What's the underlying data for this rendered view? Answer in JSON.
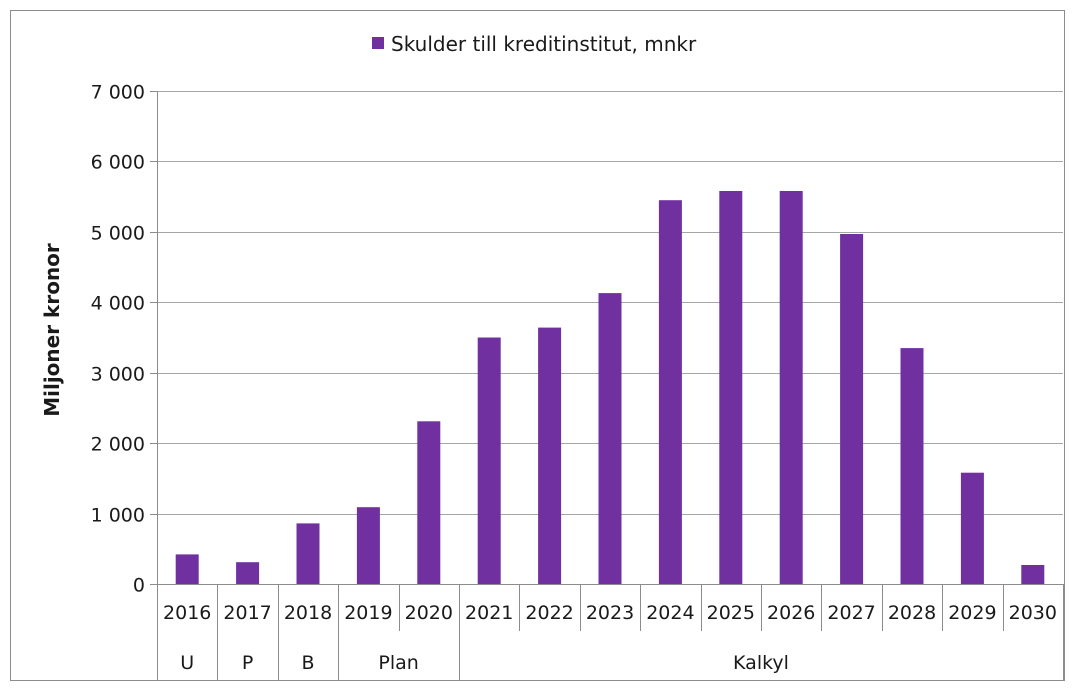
{
  "chart_data": {
    "type": "bar",
    "legend": {
      "label": "Skulder till kreditinstitut, mnkr",
      "position": "top"
    },
    "ylabel": "Miljoner kronor",
    "xlabel": "",
    "ylim": [
      0,
      7000
    ],
    "yticks": [
      {
        "value": 0,
        "label": "0"
      },
      {
        "value": 1000,
        "label": "1 000"
      },
      {
        "value": 2000,
        "label": "2 000"
      },
      {
        "value": 3000,
        "label": "3 000"
      },
      {
        "value": 4000,
        "label": "4 000"
      },
      {
        "value": 5000,
        "label": "5 000"
      },
      {
        "value": 6000,
        "label": "6 000"
      },
      {
        "value": 7000,
        "label": "7 000"
      }
    ],
    "categories": [
      "2016",
      "2017",
      "2018",
      "2019",
      "2020",
      "2021",
      "2022",
      "2023",
      "2024",
      "2025",
      "2026",
      "2027",
      "2028",
      "2029",
      "2030"
    ],
    "series": [
      {
        "name": "Skulder till kreditinstitut, mnkr",
        "values": [
          420,
          310,
          860,
          1090,
          2310,
          3500,
          3640,
          4130,
          5450,
          5580,
          5580,
          4970,
          3350,
          1580,
          270
        ]
      }
    ],
    "groups": [
      {
        "label": "U",
        "start": 0,
        "end": 0
      },
      {
        "label": "P",
        "start": 1,
        "end": 1
      },
      {
        "label": "B",
        "start": 2,
        "end": 2
      },
      {
        "label": "Plan",
        "start": 3,
        "end": 4
      },
      {
        "label": "Kalkyl",
        "start": 5,
        "end": 14
      }
    ],
    "grid": true,
    "colors": {
      "bar": "#7030a0",
      "grid": "#a6a6a6",
      "axis": "#8c8c8c",
      "border": "#8c8c8c"
    }
  }
}
